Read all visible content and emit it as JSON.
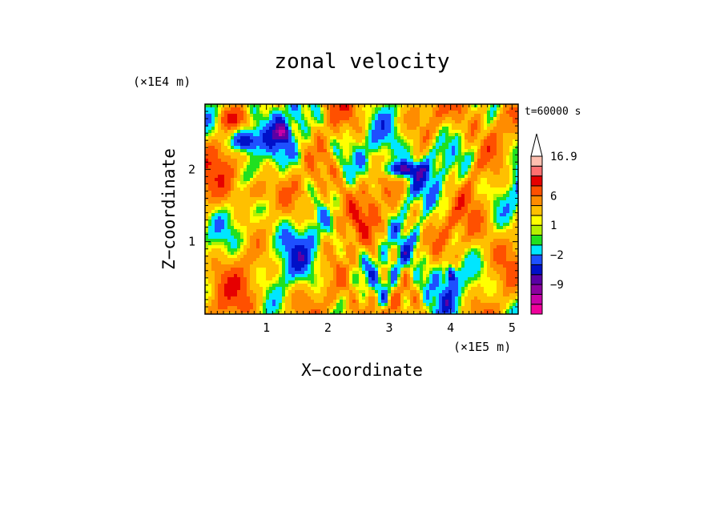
{
  "chart_data": {
    "type": "heatmap",
    "title": "zonal velocity",
    "xlabel": "X−coordinate",
    "ylabel": "Z−coordinate",
    "x_unit_label": "(×1E5 m)",
    "y_unit_label": "(×1E4 m)",
    "time_label": "t=60000 s",
    "xlim": [
      0,
      5.1
    ],
    "ylim": [
      0,
      2.9
    ],
    "x_ticks": [
      1,
      2,
      3,
      4,
      5
    ],
    "x_tick_labels": [
      "1",
      "2",
      "3",
      "4",
      "5"
    ],
    "y_ticks": [
      1,
      2
    ],
    "y_tick_labels": [
      "1",
      "2"
    ],
    "colorbar": {
      "levels": [
        {
          "color": "#f0009c",
          "label": ""
        },
        {
          "color": "#c800a8",
          "label": ""
        },
        {
          "color": "#8c00a0",
          "label": "−9"
        },
        {
          "color": "#5a00a5",
          "label": ""
        },
        {
          "color": "#0010c8",
          "label": ""
        },
        {
          "color": "#1e50ff",
          "label": "−2"
        },
        {
          "color": "#00e6ff",
          "label": ""
        },
        {
          "color": "#20e020",
          "label": ""
        },
        {
          "color": "#b4f000",
          "label": "1"
        },
        {
          "color": "#ffff00",
          "label": ""
        },
        {
          "color": "#ffc000",
          "label": ""
        },
        {
          "color": "#ff8c00",
          "label": "6"
        },
        {
          "color": "#ff5000",
          "label": ""
        },
        {
          "color": "#e60000",
          "label": ""
        },
        {
          "color": "#ff7070",
          "label": ""
        },
        {
          "color": "#ffbfb0",
          "label": "16.9"
        }
      ],
      "extend_max": true
    }
  }
}
